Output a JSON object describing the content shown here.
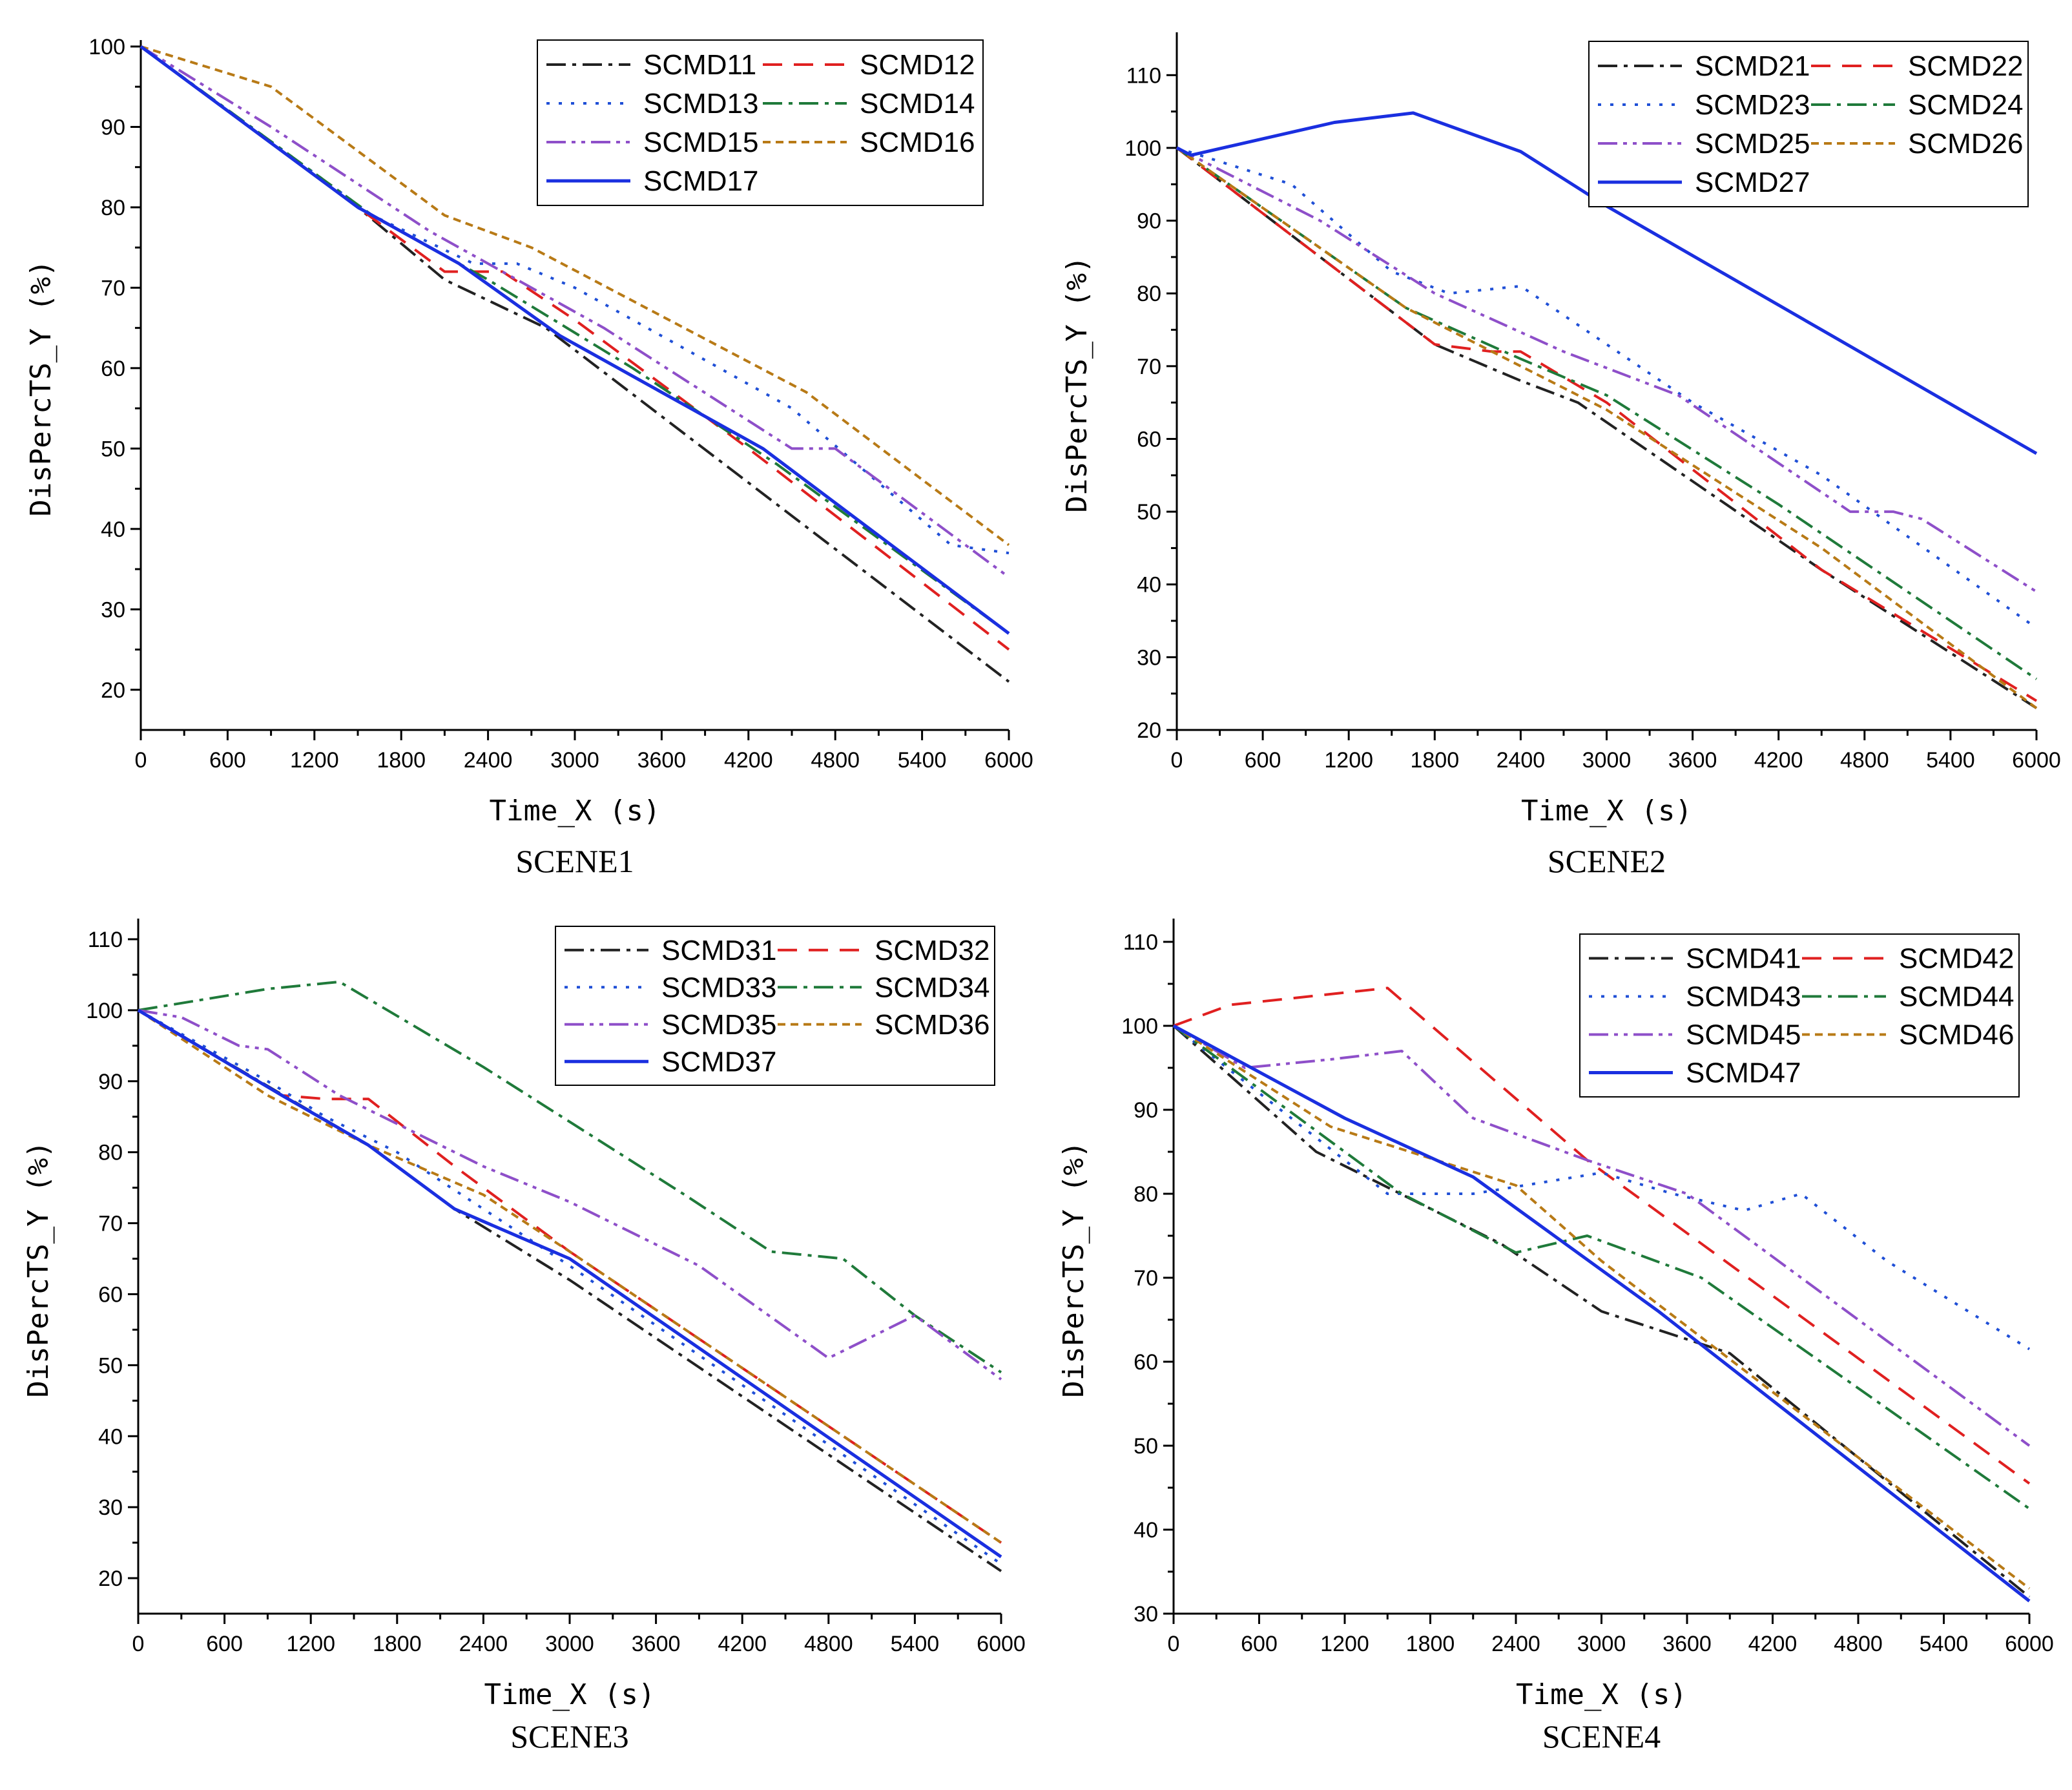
{
  "chart_data": [
    {
      "type": "line",
      "title": "SCENE1",
      "xlabel": "Time_X (s)",
      "ylabel": "DisPercTS_Y (%)",
      "xlim": [
        0,
        6000
      ],
      "ylim": [
        15,
        100
      ],
      "xticks": [
        0,
        600,
        1200,
        1800,
        2400,
        3000,
        3600,
        4200,
        4800,
        5400,
        6000
      ],
      "yticks": [
        20,
        30,
        40,
        50,
        60,
        70,
        80,
        90,
        100
      ],
      "legend_position": "top-right",
      "grid": false,
      "series": [
        {
          "name": "SCMD11",
          "x": [
            0,
            1500,
            2100,
            2800,
            6000
          ],
          "y": [
            100,
            80,
            71,
            65,
            21
          ]
        },
        {
          "name": "SCMD12",
          "x": [
            0,
            1500,
            2100,
            2500,
            3000,
            4200,
            6000
          ],
          "y": [
            100,
            80,
            72,
            72,
            66,
            50,
            25
          ]
        },
        {
          "name": "SCMD13",
          "x": [
            0,
            1600,
            2300,
            2600,
            3000,
            3500,
            4500,
            5600,
            6000
          ],
          "y": [
            100,
            79,
            73,
            73,
            70,
            65,
            55,
            38,
            37
          ]
        },
        {
          "name": "SCMD14",
          "x": [
            0,
            1600,
            2400,
            3400,
            4400,
            6000
          ],
          "y": [
            100,
            79,
            71,
            60,
            48,
            27
          ]
        },
        {
          "name": "SCMD15",
          "x": [
            0,
            900,
            2000,
            3200,
            4500,
            4800,
            6000
          ],
          "y": [
            100,
            90,
            77,
            65,
            50,
            50,
            34
          ]
        },
        {
          "name": "SCMD16",
          "x": [
            0,
            900,
            2100,
            2700,
            4600,
            6000
          ],
          "y": [
            100,
            95,
            79,
            75,
            57,
            38
          ]
        },
        {
          "name": "SCMD17",
          "x": [
            0,
            1500,
            2200,
            2900,
            4300,
            6000
          ],
          "y": [
            100,
            80,
            73,
            64,
            50,
            27
          ]
        }
      ]
    },
    {
      "type": "line",
      "title": "SCENE2",
      "xlabel": "Time_X (s)",
      "ylabel": "DisPercTS_Y (%)",
      "xlim": [
        0,
        6000
      ],
      "ylim": [
        20,
        115
      ],
      "xticks": [
        0,
        600,
        1200,
        1800,
        2400,
        3000,
        3600,
        4200,
        4800,
        5400,
        6000
      ],
      "yticks": [
        20,
        30,
        40,
        50,
        60,
        70,
        80,
        90,
        100,
        110
      ],
      "legend_position": "top-right",
      "grid": false,
      "series": [
        {
          "name": "SCMD21",
          "x": [
            0,
            1800,
            2400,
            2800,
            4500,
            6000
          ],
          "y": [
            100,
            73,
            68,
            65,
            42,
            23
          ]
        },
        {
          "name": "SCMD22",
          "x": [
            0,
            1800,
            2200,
            2400,
            3000,
            4500,
            6000
          ],
          "y": [
            100,
            73,
            72,
            72,
            65,
            42,
            24
          ]
        },
        {
          "name": "SCMD23",
          "x": [
            0,
            800,
            1500,
            1900,
            2400,
            3600,
            4500,
            6000
          ],
          "y": [
            100,
            95,
            83,
            80,
            81,
            65,
            55,
            34
          ]
        },
        {
          "name": "SCMD24",
          "x": [
            0,
            1600,
            2400,
            3000,
            4200,
            6000
          ],
          "y": [
            100,
            78,
            71,
            66,
            51,
            27
          ]
        },
        {
          "name": "SCMD25",
          "x": [
            0,
            1000,
            1800,
            2700,
            3500,
            4700,
            5000,
            5200,
            6000
          ],
          "y": [
            100,
            90,
            80,
            72,
            66,
            50,
            50,
            49,
            39
          ]
        },
        {
          "name": "SCMD26",
          "x": [
            0,
            1600,
            2400,
            3000,
            4500,
            6000
          ],
          "y": [
            100,
            78,
            70,
            64,
            45,
            23
          ]
        },
        {
          "name": "SCMD27",
          "x": [
            0,
            100,
            1100,
            1650,
            2400,
            3000,
            6000
          ],
          "y": [
            100,
            99,
            103.5,
            104.8,
            99.5,
            92,
            58
          ]
        }
      ]
    },
    {
      "type": "line",
      "title": "SCENE3",
      "xlabel": "Time_X (s)",
      "ylabel": "DisPercTS_Y (%)",
      "xlim": [
        0,
        6000
      ],
      "ylim": [
        15,
        112
      ],
      "xticks": [
        0,
        600,
        1200,
        1800,
        2400,
        3000,
        3600,
        4200,
        4800,
        5400,
        6000
      ],
      "yticks": [
        20,
        30,
        40,
        50,
        60,
        70,
        80,
        90,
        100,
        110
      ],
      "legend_position": "top-right",
      "grid": false,
      "series": [
        {
          "name": "SCMD31",
          "x": [
            0,
            1600,
            2200,
            3000,
            6000
          ],
          "y": [
            100,
            81,
            72,
            62,
            21
          ]
        },
        {
          "name": "SCMD32",
          "x": [
            0,
            1000,
            1300,
            1600,
            2200,
            3000,
            6000
          ],
          "y": [
            100,
            88,
            87.5,
            87.5,
            78,
            66,
            25
          ]
        },
        {
          "name": "SCMD33",
          "x": [
            0,
            900,
            1300,
            1800,
            3000,
            6000
          ],
          "y": [
            100,
            90,
            85,
            80,
            64,
            22
          ]
        },
        {
          "name": "SCMD34",
          "x": [
            0,
            900,
            1400,
            2400,
            3800,
            4400,
            4900,
            5400,
            6000
          ],
          "y": [
            100,
            103,
            104,
            92,
            74,
            66,
            65,
            57,
            49
          ]
        },
        {
          "name": "SCMD35",
          "x": [
            0,
            300,
            700,
            900,
            1400,
            2400,
            3000,
            3900,
            4800,
            5400,
            6000
          ],
          "y": [
            100,
            99,
            95,
            94.5,
            88,
            78,
            73,
            64,
            51,
            57,
            48
          ]
        },
        {
          "name": "SCMD36",
          "x": [
            0,
            900,
            1600,
            2400,
            3000,
            6000
          ],
          "y": [
            100,
            88,
            81,
            74,
            66,
            25
          ]
        },
        {
          "name": "SCMD37",
          "x": [
            0,
            1000,
            1600,
            2200,
            3000,
            6000
          ],
          "y": [
            100,
            88,
            81,
            72,
            65,
            23
          ]
        }
      ]
    },
    {
      "type": "line",
      "title": "SCENE4",
      "xlabel": "Time_X (s)",
      "ylabel": "DisPercTS_Y (%)",
      "xlim": [
        0,
        6000
      ],
      "ylim": [
        30,
        112
      ],
      "xticks": [
        0,
        600,
        1200,
        1800,
        2400,
        3000,
        3600,
        4200,
        4800,
        5400,
        6000
      ],
      "yticks": [
        30,
        40,
        50,
        60,
        70,
        80,
        90,
        100,
        110
      ],
      "legend_position": "top-right",
      "grid": false,
      "series": [
        {
          "name": "SCMD41",
          "x": [
            0,
            1000,
            2300,
            3000,
            3900,
            6000
          ],
          "y": [
            100,
            85,
            74,
            66,
            61,
            32
          ]
        },
        {
          "name": "SCMD42",
          "x": [
            0,
            400,
            1500,
            2900,
            6000
          ],
          "y": [
            100,
            102.5,
            104.5,
            84,
            45.5
          ]
        },
        {
          "name": "SCMD43",
          "x": [
            0,
            1200,
            1500,
            2100,
            3000,
            3500,
            4000,
            4400,
            5000,
            6000
          ],
          "y": [
            100,
            84,
            80,
            80,
            82.5,
            80,
            78,
            80,
            72,
            61.5
          ]
        },
        {
          "name": "SCMD44",
          "x": [
            0,
            1600,
            2400,
            2900,
            3700,
            6000
          ],
          "y": [
            100,
            80,
            73,
            75,
            70,
            42.5
          ]
        },
        {
          "name": "SCMD45",
          "x": [
            0,
            500,
            1100,
            1600,
            2100,
            2900,
            3600,
            6000
          ],
          "y": [
            100,
            95,
            96,
            97,
            89,
            84,
            80,
            50
          ]
        },
        {
          "name": "SCMD46",
          "x": [
            0,
            1100,
            2400,
            3000,
            6000
          ],
          "y": [
            100,
            88,
            81,
            72,
            33
          ]
        },
        {
          "name": "SCMD47",
          "x": [
            0,
            1200,
            2100,
            3400,
            6000
          ],
          "y": [
            100,
            89,
            82,
            66,
            31.5
          ]
        }
      ]
    }
  ],
  "styles": {
    "colors": [
      "#222222",
      "#e02020",
      "#1f4fd6",
      "#1f7a3a",
      "#8e4fc9",
      "#b87a16",
      "#1a2fe0"
    ],
    "dashes": [
      "dash-dot",
      "dashed",
      "dotted",
      "dash-dot",
      "dash-dot-dot",
      "short-dash",
      "solid"
    ]
  }
}
